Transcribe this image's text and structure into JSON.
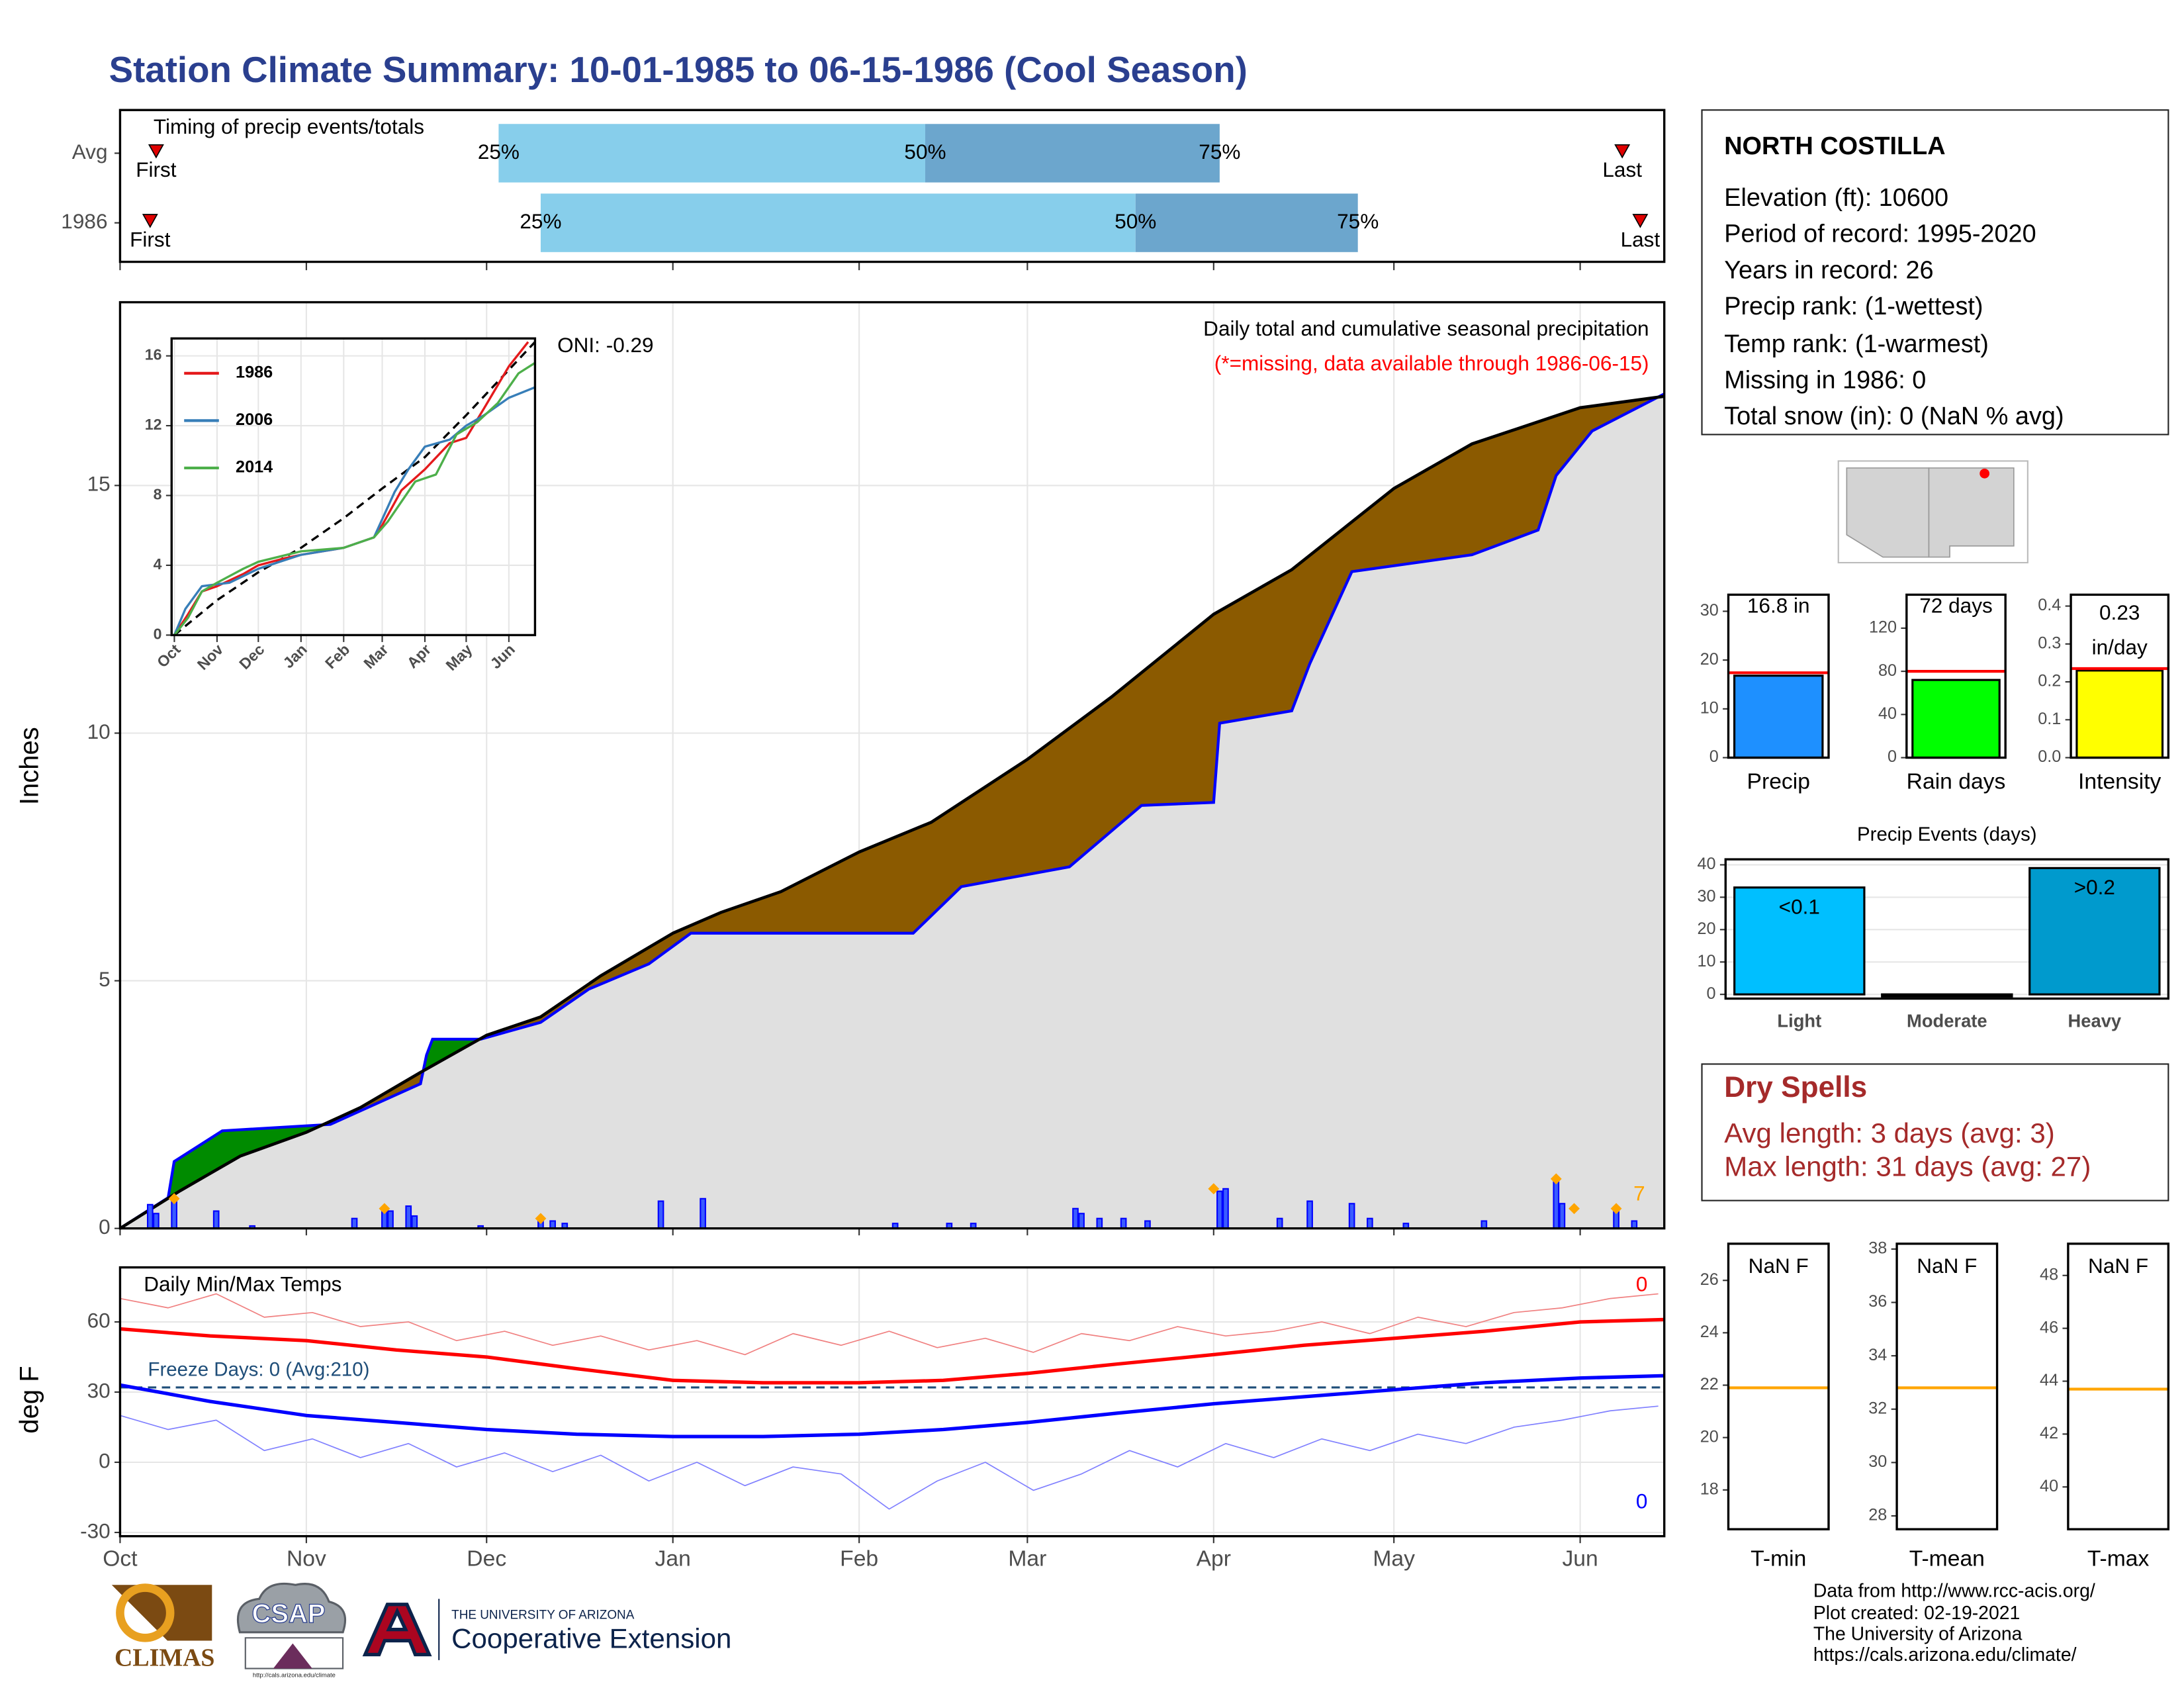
{
  "title": "Station Climate Summary: 10-01-1985 to 06-15-1986 (Cool Season)",
  "chart_data": [
    {
      "type": "timing",
      "title": "Timing of precip events/totals",
      "categories": [
        "Avg",
        "1986"
      ],
      "quantile_labels": [
        "25%",
        "50%",
        "75%"
      ],
      "q25": [
        63,
        70
      ],
      "q50": [
        134,
        169
      ],
      "q75": [
        183,
        206
      ],
      "first": [
        6,
        5
      ],
      "last": [
        250,
        253
      ],
      "first_label": "First",
      "last_label": "Last",
      "colors": [
        "#87ceeb",
        "#6ca6cd"
      ],
      "marker_color": "#e00000",
      "xlim": [
        0,
        257
      ],
      "xticks": [
        {
          "value": 0,
          "label": "Oct"
        },
        {
          "value": 31,
          "label": "Nov"
        },
        {
          "value": 61,
          "label": "Dec"
        },
        {
          "value": 92,
          "label": "Jan"
        },
        {
          "value": 123,
          "label": "Feb"
        },
        {
          "value": 151,
          "label": "Mar"
        },
        {
          "value": 182,
          "label": "Apr"
        },
        {
          "value": 212,
          "label": "May"
        },
        {
          "value": 243,
          "label": "Jun"
        }
      ]
    },
    {
      "type": "cumulative",
      "ylabel": "Inches",
      "annotation": "Daily total and cumulative seasonal precipitation",
      "note": "(*=missing, data available through 1986-06-15)",
      "oni": "ONI: -0.29",
      "xlim": [
        0,
        257
      ],
      "xticks": [
        {
          "value": 0,
          "label": "Oct"
        },
        {
          "value": 31,
          "label": "Nov"
        },
        {
          "value": 61,
          "label": "Dec"
        },
        {
          "value": 92,
          "label": "Jan"
        },
        {
          "value": 123,
          "label": "Feb"
        },
        {
          "value": 151,
          "label": "Mar"
        },
        {
          "value": 182,
          "label": "Apr"
        },
        {
          "value": 212,
          "label": "May"
        },
        {
          "value": 243,
          "label": "Jun"
        }
      ],
      "ylim": [
        0,
        18.7
      ],
      "yticks": [
        0,
        5,
        10,
        15
      ],
      "grid": true,
      "cumulative": {
        "color": "#000000",
        "x": [
          0,
          10,
          20,
          31,
          40,
          50,
          61,
          70,
          80,
          92,
          100,
          110,
          123,
          135,
          151,
          165,
          182,
          195,
          212,
          225,
          243,
          257
        ],
        "values": [
          0,
          0.76,
          1.46,
          1.94,
          2.44,
          3.15,
          3.9,
          4.27,
          5.1,
          5.96,
          6.38,
          6.8,
          7.6,
          8.2,
          9.47,
          10.73,
          12.4,
          13.3,
          14.94,
          15.84,
          16.57,
          16.8
        ]
      },
      "average": {
        "color": "#0000ff",
        "x": [
          0,
          8,
          9,
          17,
          35,
          50,
          51,
          52,
          60,
          70,
          78,
          88,
          95,
          132,
          140,
          158,
          170,
          182,
          183,
          195,
          198,
          205,
          225,
          236,
          239,
          245,
          257
        ],
        "values": [
          0,
          0.62,
          1.35,
          1.97,
          2.1,
          2.92,
          3.5,
          3.82,
          3.82,
          4.16,
          4.83,
          5.34,
          5.96,
          5.96,
          6.9,
          7.3,
          8.54,
          8.6,
          10.2,
          10.45,
          11.4,
          13.26,
          13.6,
          14.1,
          15.2,
          16.1,
          16.85
        ]
      },
      "daily": {
        "color": "#0000ff",
        "x": [
          5,
          6,
          9,
          16,
          22,
          39,
          44,
          45,
          48,
          49,
          60,
          70,
          72,
          74,
          90,
          97,
          129,
          138,
          142,
          159,
          160,
          163,
          167,
          171,
          183,
          184,
          193,
          198,
          205,
          208,
          214,
          227,
          239,
          240,
          249,
          252
        ],
        "values": [
          0.48,
          0.3,
          0.6,
          0.35,
          0.05,
          0.2,
          0.4,
          0.35,
          0.45,
          0.25,
          0.05,
          0.15,
          0.15,
          0.1,
          0.55,
          0.6,
          0.1,
          0.1,
          0.1,
          0.4,
          0.3,
          0.2,
          0.2,
          0.15,
          0.75,
          0.8,
          0.2,
          0.55,
          0.5,
          0.2,
          0.1,
          0.15,
          0.95,
          0.5,
          0.35,
          0.15
        ]
      },
      "events": {
        "color": "#ffa500",
        "x": [
          9,
          44,
          70,
          182,
          239,
          242,
          249
        ],
        "values": [
          0.6,
          0.4,
          0.2,
          0.8,
          1.0,
          0.4,
          0.4
        ],
        "count": 7
      },
      "above_color": "#8b5a00",
      "below_color": "#008b00",
      "base_color": "#e0e0e0"
    },
    {
      "type": "line",
      "xlim": [
        -2,
        262
      ],
      "xticks": [
        {
          "value": 0,
          "label": "Oct"
        },
        {
          "value": 31,
          "label": "Nov"
        },
        {
          "value": 61,
          "label": "Dec"
        },
        {
          "value": 92,
          "label": "Jan"
        },
        {
          "value": 123,
          "label": "Feb"
        },
        {
          "value": 151,
          "label": "Mar"
        },
        {
          "value": 182,
          "label": "Apr"
        },
        {
          "value": 212,
          "label": "May"
        },
        {
          "value": 243,
          "label": "Jun"
        }
      ],
      "ylim": [
        0,
        17
      ],
      "yticks": [
        0,
        4,
        8,
        12,
        16
      ],
      "grid": true,
      "series": [
        {
          "color": "#000000",
          "dash": true,
          "x": [
            0,
            31,
            61,
            92,
            123,
            151,
            182,
            212,
            243,
            262
          ],
          "values": [
            0,
            2.0,
            3.6,
            5.0,
            6.7,
            8.4,
            10.2,
            12.6,
            15.2,
            16.8
          ]
        },
        {
          "name": "1986",
          "color": "#e41a1c",
          "x": [
            0,
            10,
            20,
            31,
            50,
            61,
            80,
            92,
            123,
            145,
            151,
            165,
            182,
            200,
            212,
            225,
            243,
            257
          ],
          "values": [
            0,
            1.2,
            2.5,
            2.8,
            3.5,
            4.0,
            4.4,
            4.6,
            5.0,
            5.6,
            6.3,
            8.3,
            9.5,
            11.0,
            11.3,
            13.0,
            15.4,
            16.8
          ]
        },
        {
          "name": "2006",
          "color": "#377eb8",
          "x": [
            0,
            8,
            20,
            40,
            61,
            92,
            123,
            145,
            160,
            170,
            182,
            200,
            212,
            225,
            243,
            262
          ],
          "values": [
            0,
            1.5,
            2.8,
            3.0,
            3.8,
            4.6,
            5.0,
            5.6,
            8.2,
            9.5,
            10.8,
            11.2,
            12.0,
            12.6,
            13.6,
            14.2
          ]
        },
        {
          "name": "2014",
          "color": "#4daf4a",
          "x": [
            0,
            10,
            20,
            31,
            50,
            61,
            92,
            123,
            145,
            155,
            175,
            190,
            205,
            220,
            235,
            250,
            262
          ],
          "values": [
            0,
            1.0,
            2.5,
            3.0,
            3.8,
            4.2,
            4.8,
            5.0,
            5.6,
            6.5,
            8.8,
            9.2,
            11.5,
            12.2,
            13.3,
            15.0,
            15.6
          ]
        }
      ]
    },
    {
      "type": "line",
      "title": "Daily Min/Max Temps",
      "ylabel": "deg F",
      "xlim": [
        0,
        257
      ],
      "xticks": [
        {
          "value": 0,
          "label": "Oct"
        },
        {
          "value": 31,
          "label": "Nov"
        },
        {
          "value": 61,
          "label": "Dec"
        },
        {
          "value": 92,
          "label": "Jan"
        },
        {
          "value": 123,
          "label": "Feb"
        },
        {
          "value": 151,
          "label": "Mar"
        },
        {
          "value": 182,
          "label": "Apr"
        },
        {
          "value": 212,
          "label": "May"
        },
        {
          "value": 243,
          "label": "Jun"
        }
      ],
      "ylim": [
        -31.6,
        83.3
      ],
      "yticks": [
        -30,
        0,
        30,
        60
      ],
      "grid": true,
      "hlines": [
        {
          "value": 32,
          "color": "#1f4e79",
          "dash": true
        }
      ],
      "freeze_label": "Freeze Days: 0 (Avg:210)",
      "max_count": 0,
      "min_count": 0,
      "series": [
        {
          "color": "#f08080",
          "width": 0.8,
          "x": [
            0,
            8,
            16,
            24,
            32,
            40,
            48,
            56,
            64,
            72,
            80,
            88,
            96,
            104,
            112,
            120,
            128,
            136,
            144,
            152,
            160,
            168,
            176,
            184,
            192,
            200,
            208,
            216,
            224,
            232,
            240,
            248,
            256
          ],
          "values": [
            70,
            66,
            72,
            62,
            64,
            58,
            60,
            52,
            56,
            50,
            54,
            48,
            52,
            46,
            55,
            50,
            56,
            49,
            53,
            47,
            55,
            52,
            58,
            54,
            56,
            60,
            55,
            62,
            58,
            64,
            66,
            70,
            72
          ]
        },
        {
          "color": "#ff0000",
          "width": 2.5,
          "x": [
            0,
            15,
            31,
            46,
            61,
            76,
            92,
            107,
            123,
            137,
            151,
            166,
            182,
            197,
            212,
            227,
            243,
            257
          ],
          "values": [
            57,
            54,
            52,
            48,
            45,
            40,
            35,
            34,
            34,
            35,
            38,
            42,
            46,
            50,
            53,
            56,
            60,
            61
          ]
        },
        {
          "color": "#8080ff",
          "width": 0.8,
          "x": [
            0,
            8,
            16,
            24,
            32,
            40,
            48,
            56,
            64,
            72,
            80,
            88,
            96,
            104,
            112,
            120,
            128,
            136,
            144,
            152,
            160,
            168,
            176,
            184,
            192,
            200,
            208,
            216,
            224,
            232,
            240,
            248,
            256
          ],
          "values": [
            20,
            14,
            18,
            5,
            10,
            2,
            8,
            -2,
            4,
            -4,
            3,
            -8,
            0,
            -10,
            -2,
            -5,
            -20,
            -8,
            0,
            -12,
            -5,
            5,
            -2,
            8,
            2,
            10,
            5,
            12,
            8,
            15,
            18,
            22,
            24
          ]
        },
        {
          "color": "#0000ff",
          "width": 2.5,
          "x": [
            0,
            15,
            31,
            46,
            61,
            76,
            92,
            107,
            123,
            137,
            151,
            166,
            182,
            197,
            212,
            227,
            243,
            257
          ],
          "values": [
            33,
            26,
            20,
            17,
            14,
            12,
            11,
            11,
            12,
            14,
            17,
            21,
            25,
            28,
            31,
            34,
            36,
            37
          ]
        }
      ]
    },
    {
      "type": "bar",
      "categories": [
        "Precip"
      ],
      "values": [
        16.8
      ],
      "value_labels": [
        "16.8 in"
      ],
      "avg": 17.4,
      "avg_color": "#ff0000",
      "color": "#1e90ff",
      "ylim": [
        0,
        33.4
      ],
      "yticks": [
        0,
        10,
        20,
        30
      ]
    },
    {
      "type": "bar",
      "categories": [
        "Rain days"
      ],
      "values": [
        72
      ],
      "value_labels": [
        "72 days"
      ],
      "avg": 80,
      "avg_color": "#ff0000",
      "color": "#00ff00",
      "ylim": [
        0,
        151
      ],
      "yticks": [
        0,
        40,
        80,
        120
      ]
    },
    {
      "type": "bar",
      "categories": [
        "Intensity"
      ],
      "values": [
        0.23
      ],
      "value_labels": [
        "0.23 in/day"
      ],
      "avg": 0.235,
      "avg_color": "#ff0000",
      "color": "#ffff00",
      "ylim": [
        0,
        0.43
      ],
      "yticks": [
        {
          "value": 0,
          "label": "0.0"
        },
        0.1,
        0.2,
        0.3,
        0.4
      ]
    },
    {
      "type": "bar",
      "title": "Precip Events (days)",
      "categories": [
        "Light",
        "Moderate",
        "Heavy"
      ],
      "values": [
        33,
        0,
        39
      ],
      "bar_labels": [
        "<0.1",
        null,
        ">0.2"
      ],
      "colors": [
        "#00bfff",
        "#00bfff",
        "#009acd"
      ],
      "ylim": [
        -1.3,
        41.7
      ],
      "yticks": [
        0,
        10,
        20,
        30,
        40
      ],
      "grid": true
    },
    {
      "type": "hline",
      "categories": [
        "T-min"
      ],
      "label": "NaN F",
      "avg": 21.9,
      "color": "#ffa500",
      "ylim": [
        16.5,
        27.4
      ],
      "yticks": [
        18,
        20,
        22,
        24,
        26
      ]
    },
    {
      "type": "hline",
      "categories": [
        "T-mean"
      ],
      "label": "NaN F",
      "avg": 32.8,
      "color": "#ffa500",
      "ylim": [
        27.5,
        38.2
      ],
      "yticks": [
        28,
        30,
        32,
        34,
        36,
        38
      ]
    },
    {
      "type": "hline",
      "categories": [
        "T-max"
      ],
      "label": "NaN F",
      "avg": 43.7,
      "color": "#ffa500",
      "ylim": [
        38.4,
        49.2
      ],
      "yticks": [
        40,
        42,
        44,
        46,
        48
      ]
    }
  ],
  "station": {
    "name": "NORTH COSTILLA",
    "lines": [
      "Elevation (ft): 10600",
      "Period of record: 1995-2020",
      "Years in record: 26",
      "Precip rank:  (1-wettest)",
      "Temp rank:  (1-warmest)",
      "Missing in 1986: 0",
      "Total snow (in): 0 (NaN % avg)"
    ]
  },
  "dry_spells": {
    "title": "Dry Spells",
    "lines": [
      "Avg length: 3 days (avg: 3)",
      "Max length: 31 days (avg: 27)"
    ]
  },
  "footer": [
    "Data from http://www.rcc-acis.org/",
    "Plot created: 02-19-2021",
    "The University of Arizona",
    "https://cals.arizona.edu/climate/"
  ],
  "logos": {
    "climas": "CLIMAS",
    "csap": "CSAP",
    "csap_url": "http://cals.arizona.edu/climate",
    "university": "THE UNIVERSITY OF ARIZONA",
    "extension": "Cooperative Extension"
  }
}
